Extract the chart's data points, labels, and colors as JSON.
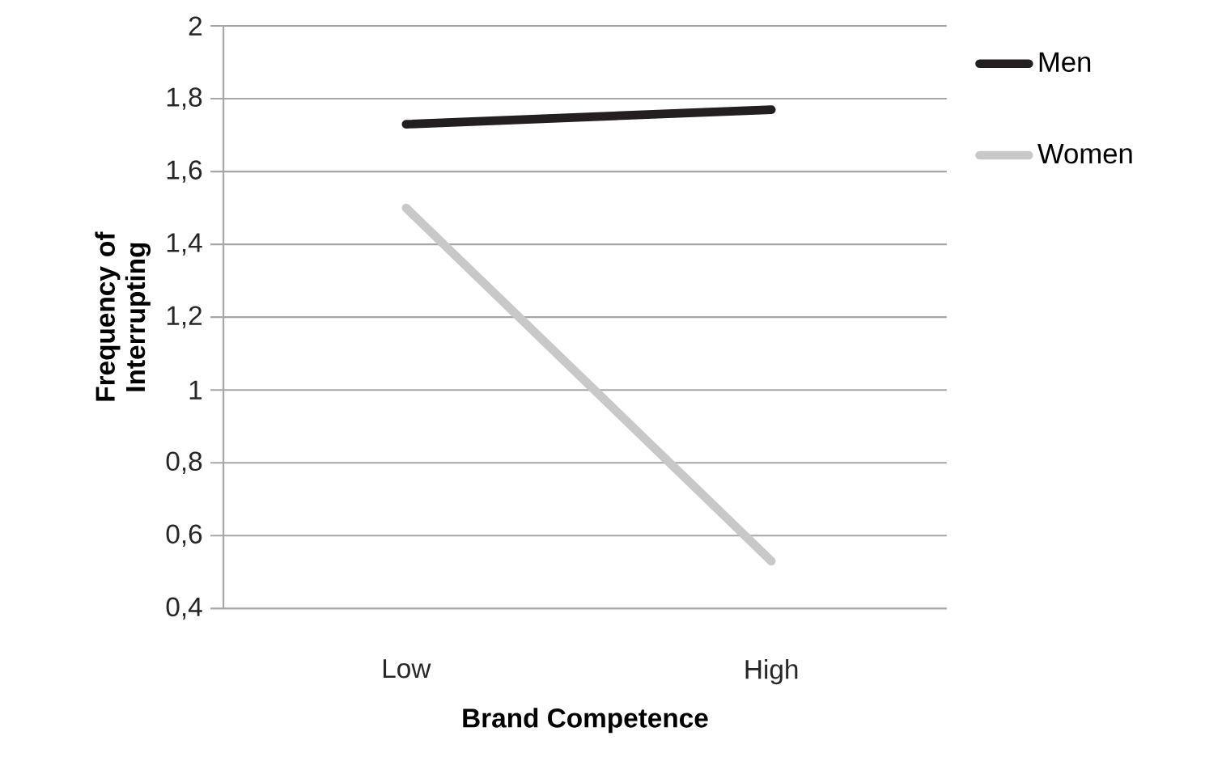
{
  "chart_data": {
    "type": "line",
    "xlabel": "Brand Competence",
    "ylabel": "Frequency of Interrupting",
    "categories": [
      "Low",
      "High"
    ],
    "series": [
      {
        "name": "Men",
        "color": "#231f20",
        "values": [
          1.73,
          1.77
        ]
      },
      {
        "name": "Women",
        "color": "#c8c8c8",
        "values": [
          1.5,
          0.53
        ]
      }
    ],
    "ylim": [
      0.4,
      2
    ],
    "yticks": [
      {
        "value": 0.4,
        "label": "0,4"
      },
      {
        "value": 0.6,
        "label": "0,6"
      },
      {
        "value": 0.8,
        "label": "0,8"
      },
      1,
      {
        "value": 1.2,
        "label": "1,2"
      },
      {
        "value": 1.4,
        "label": "1,4"
      },
      {
        "value": 1.6,
        "label": "1,6"
      },
      {
        "value": 1.8,
        "label": "1,8"
      },
      2
    ],
    "grid": "y",
    "legend": "top right",
    "marker": "none",
    "line_style": "solid"
  }
}
